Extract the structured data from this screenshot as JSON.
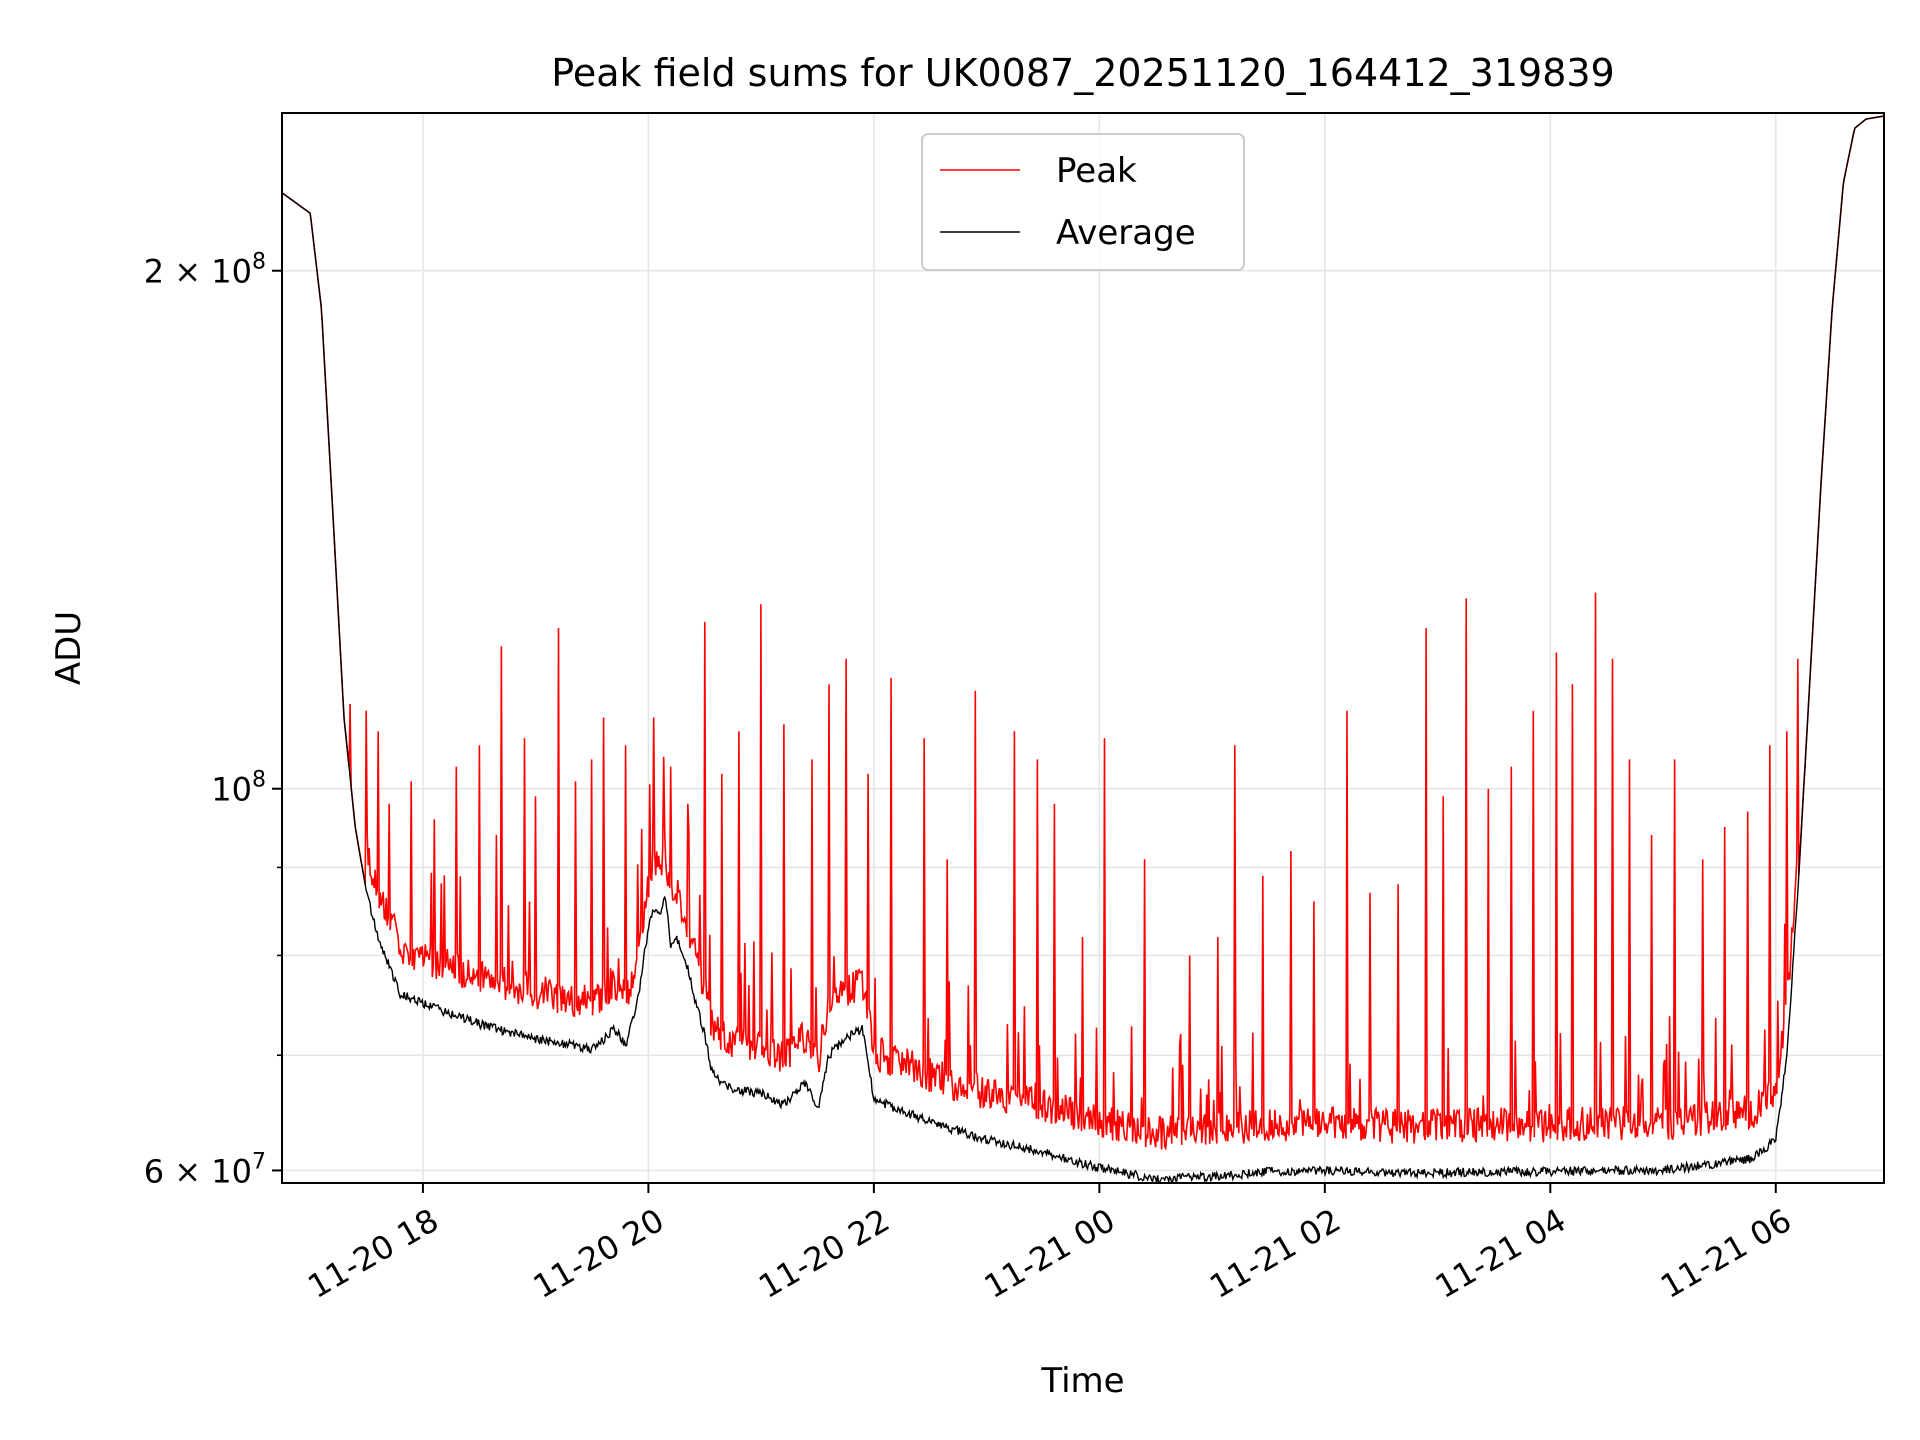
{
  "chart_data": {
    "type": "line",
    "title": "Peak field sums for UK0087_20251120_164412_319839",
    "xlabel": "Time",
    "ylabel": "ADU",
    "yscale": "log",
    "xlim_hours": [
      16.75,
      30.96
    ],
    "ylim": [
      59000000,
      247000000
    ],
    "x_unit": "hours since 2025-11-20 00:00",
    "x_ticks": [
      {
        "value": 18,
        "label": "11-20 18"
      },
      {
        "value": 20,
        "label": "11-20 20"
      },
      {
        "value": 22,
        "label": "11-20 22"
      },
      {
        "value": 24,
        "label": "11-21 00"
      },
      {
        "value": 26,
        "label": "11-21 02"
      },
      {
        "value": 28,
        "label": "11-21 04"
      },
      {
        "value": 30,
        "label": "11-21 06"
      }
    ],
    "y_major_ticks": [
      {
        "value": 60000000,
        "label_base": "6 × 10",
        "label_exp": "7"
      },
      {
        "value": 100000000,
        "label_base": "10",
        "label_exp": "8"
      },
      {
        "value": 200000000,
        "label_base": "2 × 10",
        "label_exp": "8"
      }
    ],
    "y_minor_ticks": [
      70000000,
      80000000,
      90000000
    ],
    "grid": true,
    "legend_position": "top-center",
    "colors": {
      "peak": "#ff0000",
      "average": "#000000",
      "grid": "#e6e6e6"
    },
    "series": [
      {
        "name": "Average",
        "color": "#000000",
        "x": [
          16.75,
          17.0,
          17.1,
          17.2,
          17.3,
          17.4,
          17.5,
          17.6,
          17.7,
          17.8,
          18.0,
          18.5,
          19.0,
          19.3,
          19.5,
          19.7,
          19.8,
          19.9,
          20.0,
          20.05,
          20.1,
          20.15,
          20.2,
          20.25,
          20.3,
          20.35,
          20.4,
          20.5,
          20.55,
          20.6,
          20.7,
          21.0,
          21.1,
          21.2,
          21.3,
          21.4,
          21.5,
          21.55,
          21.6,
          21.7,
          21.8,
          21.9,
          22.0,
          22.5,
          23.0,
          23.5,
          24.0,
          24.5,
          25.0,
          25.5,
          26.0,
          26.5,
          27.0,
          27.5,
          28.0,
          28.5,
          29.0,
          29.5,
          29.8,
          30.0,
          30.1,
          30.2,
          30.3,
          30.4,
          30.5,
          30.6,
          30.7,
          30.8,
          30.96
        ],
        "values": [
          222000000,
          216000000,
          190000000,
          145000000,
          110000000,
          95000000,
          87000000,
          82000000,
          79000000,
          76000000,
          75000000,
          73000000,
          71500000,
          71000000,
          70500000,
          72500000,
          71000000,
          75000000,
          83000000,
          85000000,
          84500000,
          87000000,
          81000000,
          82000000,
          80000000,
          78500000,
          76000000,
          72000000,
          69000000,
          68000000,
          67000000,
          66500000,
          66000000,
          65500000,
          66500000,
          67500000,
          65000000,
          67500000,
          70000000,
          71000000,
          72000000,
          72500000,
          66000000,
          64000000,
          62500000,
          61500000,
          60200000,
          59300000,
          59500000,
          59900000,
          60000000,
          59800000,
          59800000,
          59900000,
          59900000,
          60000000,
          60000000,
          60600000,
          61000000,
          62500000,
          70000000,
          88000000,
          115000000,
          150000000,
          190000000,
          225000000,
          242000000,
          245000000,
          246000000
        ]
      },
      {
        "name": "Peak",
        "color": "#ff0000",
        "spike_times": [
          17.35,
          17.5,
          17.6,
          17.7,
          17.9,
          18.1,
          18.3,
          18.5,
          18.65,
          18.7,
          18.9,
          19.0,
          19.2,
          19.35,
          19.5,
          19.6,
          19.8,
          20.05,
          20.2,
          20.35,
          20.5,
          20.65,
          20.8,
          21.0,
          21.2,
          21.45,
          21.6,
          21.75,
          21.95,
          22.15,
          22.45,
          22.65,
          22.9,
          23.25,
          23.45,
          23.6,
          23.85,
          24.05,
          24.4,
          24.8,
          25.05,
          25.2,
          25.45,
          25.7,
          25.9,
          26.2,
          26.4,
          26.65,
          26.9,
          27.05,
          27.25,
          27.45,
          27.65,
          27.85,
          28.05,
          28.2,
          28.4,
          28.55,
          28.7,
          28.9,
          29.1,
          29.35,
          29.55,
          29.75,
          29.95,
          30.1,
          30.2
        ],
        "spike_values": [
          112000000,
          111000000,
          108000000,
          98000000,
          101000000,
          96000000,
          103000000,
          106000000,
          94000000,
          121000000,
          107000000,
          99000000,
          124000000,
          101000000,
          104000000,
          110000000,
          106000000,
          110000000,
          103000000,
          98000000,
          125000000,
          102000000,
          108000000,
          128000000,
          109000000,
          104000000,
          115000000,
          119000000,
          102000000,
          116000000,
          107000000,
          91000000,
          114000000,
          108000000,
          104000000,
          98000000,
          82000000,
          107000000,
          91000000,
          80000000,
          82000000,
          106000000,
          89000000,
          92000000,
          86000000,
          111000000,
          87000000,
          88000000,
          124000000,
          99000000,
          129000000,
          100000000,
          103000000,
          111000000,
          120000000,
          115000000,
          130000000,
          119000000,
          104000000,
          94000000,
          104000000,
          91000000,
          95000000,
          97000000,
          106000000,
          108000000,
          119000000
        ],
        "baseline_offset_ratio": 1.04
      }
    ]
  },
  "legend": {
    "items": [
      {
        "label": "Peak",
        "color": "#ff0000"
      },
      {
        "label": "Average",
        "color": "#000000"
      }
    ]
  }
}
